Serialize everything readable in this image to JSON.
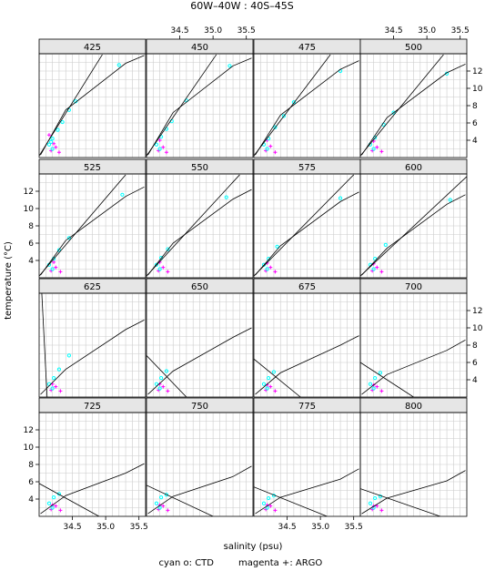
{
  "chart_data": {
    "type": "scatter",
    "title": "60W–40W : 40S–45S",
    "xlabel": "salinity (psu)",
    "ylabel": "temperature (°C)",
    "caption_ctd": "cyan o: CTD",
    "caption_argo": "magenta +: ARGO",
    "xlim": [
      34.0,
      35.6
    ],
    "ylim": [
      2.0,
      14.0
    ],
    "xticks": [
      "34.5",
      "35.0",
      "35.5"
    ],
    "yticks": [
      "4",
      "6",
      "8",
      "10",
      "12"
    ],
    "grid": true,
    "colors": {
      "ctd": "#00ffff",
      "argo": "#ff00ff",
      "strip": "#e6e6e6",
      "grid": "#cccccc"
    },
    "panels": [
      {
        "label": "425",
        "density_curve": [
          [
            34.02,
            2.3
          ],
          [
            34.4,
            7.5
          ],
          [
            35.3,
            12.9
          ],
          [
            35.58,
            13.8
          ]
        ],
        "tangent_line": [
          [
            34.0,
            2.2
          ],
          [
            34.95,
            13.9
          ]
        ],
        "ctd_points": [
          [
            34.15,
            3.5
          ],
          [
            34.2,
            4.2
          ],
          [
            34.28,
            5.2
          ],
          [
            34.35,
            6.1
          ],
          [
            34.45,
            7.5
          ],
          [
            34.55,
            8.5
          ],
          [
            35.2,
            12.7
          ],
          [
            34.2,
            3.0
          ],
          [
            34.18,
            3.8
          ]
        ],
        "argo_points": [
          [
            34.18,
            2.8
          ],
          [
            34.25,
            3.2
          ],
          [
            34.3,
            2.6
          ],
          [
            34.22,
            3.6
          ],
          [
            34.15,
            4.6
          ]
        ]
      },
      {
        "label": "450",
        "density_curve": [
          [
            34.02,
            2.3
          ],
          [
            34.4,
            7.2
          ],
          [
            35.3,
            12.6
          ],
          [
            35.58,
            13.5
          ]
        ],
        "tangent_line": [
          [
            34.0,
            2.2
          ],
          [
            35.05,
            13.9
          ]
        ],
        "ctd_points": [
          [
            34.15,
            3.5
          ],
          [
            34.22,
            4.4
          ],
          [
            34.3,
            5.3
          ],
          [
            34.38,
            6.2
          ],
          [
            34.6,
            8.6
          ],
          [
            35.25,
            12.6
          ],
          [
            34.2,
            3.0
          ]
        ],
        "argo_points": [
          [
            34.18,
            2.8
          ],
          [
            34.25,
            3.2
          ],
          [
            34.3,
            2.6
          ],
          [
            34.2,
            4.0
          ]
        ]
      },
      {
        "label": "475",
        "density_curve": [
          [
            34.02,
            2.3
          ],
          [
            34.4,
            6.9
          ],
          [
            35.3,
            12.2
          ],
          [
            35.58,
            13.2
          ]
        ],
        "tangent_line": [
          [
            34.0,
            2.2
          ],
          [
            35.15,
            13.9
          ]
        ],
        "ctd_points": [
          [
            34.15,
            3.5
          ],
          [
            34.22,
            4.2
          ],
          [
            34.32,
            5.5
          ],
          [
            34.45,
            6.8
          ],
          [
            34.6,
            8.4
          ],
          [
            35.3,
            12.0
          ],
          [
            34.2,
            3.0
          ]
        ],
        "argo_points": [
          [
            34.18,
            2.8
          ],
          [
            34.25,
            3.3
          ],
          [
            34.32,
            2.6
          ],
          [
            34.2,
            4.0
          ]
        ]
      },
      {
        "label": "500",
        "density_curve": [
          [
            34.02,
            2.3
          ],
          [
            34.4,
            6.6
          ],
          [
            35.3,
            11.8
          ],
          [
            35.58,
            12.8
          ]
        ],
        "tangent_line": [
          [
            34.0,
            2.2
          ],
          [
            35.25,
            13.9
          ]
        ],
        "ctd_points": [
          [
            34.15,
            3.5
          ],
          [
            34.22,
            4.3
          ],
          [
            34.35,
            5.8
          ],
          [
            34.5,
            7.2
          ],
          [
            35.3,
            11.7
          ],
          [
            34.2,
            3.0
          ]
        ],
        "argo_points": [
          [
            34.18,
            2.8
          ],
          [
            34.25,
            3.2
          ],
          [
            34.32,
            2.7
          ],
          [
            34.2,
            3.9
          ]
        ]
      },
      {
        "label": "525",
        "density_curve": [
          [
            34.02,
            2.3
          ],
          [
            34.4,
            6.3
          ],
          [
            35.3,
            11.4
          ],
          [
            35.58,
            12.5
          ]
        ],
        "tangent_line": [
          [
            34.0,
            2.2
          ],
          [
            35.3,
            13.9
          ]
        ],
        "ctd_points": [
          [
            34.15,
            3.5
          ],
          [
            34.22,
            4.2
          ],
          [
            34.3,
            5.2
          ],
          [
            34.45,
            6.6
          ],
          [
            35.25,
            11.6
          ],
          [
            34.2,
            3.0
          ]
        ],
        "argo_points": [
          [
            34.18,
            2.8
          ],
          [
            34.25,
            3.2
          ],
          [
            34.32,
            2.7
          ],
          [
            34.22,
            3.8
          ]
        ]
      },
      {
        "label": "550",
        "density_curve": [
          [
            34.02,
            2.3
          ],
          [
            34.4,
            6.0
          ],
          [
            35.3,
            11.1
          ],
          [
            35.58,
            12.2
          ]
        ],
        "tangent_line": [
          [
            34.0,
            2.2
          ],
          [
            35.4,
            13.9
          ]
        ],
        "ctd_points": [
          [
            34.15,
            3.5
          ],
          [
            34.22,
            4.3
          ],
          [
            34.32,
            5.3
          ],
          [
            35.2,
            11.3
          ],
          [
            34.2,
            3.0
          ]
        ],
        "argo_points": [
          [
            34.18,
            2.8
          ],
          [
            34.25,
            3.2
          ],
          [
            34.32,
            2.7
          ],
          [
            34.2,
            3.8
          ]
        ]
      },
      {
        "label": "575",
        "density_curve": [
          [
            34.02,
            2.3
          ],
          [
            34.4,
            5.7
          ],
          [
            35.3,
            10.8
          ],
          [
            35.58,
            11.9
          ]
        ],
        "tangent_line": [
          [
            34.0,
            2.2
          ],
          [
            35.5,
            13.9
          ]
        ],
        "ctd_points": [
          [
            34.15,
            3.5
          ],
          [
            34.22,
            4.2
          ],
          [
            34.35,
            5.6
          ],
          [
            35.3,
            11.2
          ],
          [
            34.2,
            3.0
          ]
        ],
        "argo_points": [
          [
            34.18,
            2.8
          ],
          [
            34.25,
            3.2
          ],
          [
            34.32,
            2.7
          ],
          [
            34.2,
            3.7
          ]
        ]
      },
      {
        "label": "600",
        "density_curve": [
          [
            34.02,
            2.3
          ],
          [
            34.4,
            5.4
          ],
          [
            35.3,
            10.5
          ],
          [
            35.58,
            11.6
          ]
        ],
        "tangent_line": [
          [
            34.0,
            2.2
          ],
          [
            35.6,
            13.7
          ]
        ],
        "ctd_points": [
          [
            34.15,
            3.5
          ],
          [
            34.22,
            4.2
          ],
          [
            34.38,
            5.8
          ],
          [
            35.35,
            11.0
          ],
          [
            34.2,
            3.0
          ]
        ],
        "argo_points": [
          [
            34.18,
            2.8
          ],
          [
            34.25,
            3.2
          ],
          [
            34.32,
            2.7
          ],
          [
            34.2,
            3.6
          ]
        ]
      },
      {
        "label": "625",
        "density_curve": [
          [
            34.02,
            2.3
          ],
          [
            34.4,
            5.2
          ],
          [
            35.3,
            9.8
          ],
          [
            35.58,
            10.9
          ]
        ],
        "tangent_line": [
          [
            34.04,
            14.0
          ],
          [
            34.12,
            2.0
          ]
        ],
        "ctd_points": [
          [
            34.15,
            3.5
          ],
          [
            34.22,
            4.2
          ],
          [
            34.3,
            5.2
          ],
          [
            34.45,
            6.8
          ],
          [
            34.2,
            3.0
          ]
        ],
        "argo_points": [
          [
            34.18,
            2.8
          ],
          [
            34.25,
            3.2
          ],
          [
            34.32,
            2.7
          ],
          [
            34.2,
            3.5
          ]
        ]
      },
      {
        "label": "650",
        "density_curve": [
          [
            34.02,
            2.3
          ],
          [
            34.4,
            5.0
          ],
          [
            35.3,
            8.9
          ],
          [
            35.58,
            10.0
          ]
        ],
        "tangent_line": [
          [
            34.0,
            6.8
          ],
          [
            34.6,
            2.0
          ]
        ],
        "ctd_points": [
          [
            34.15,
            3.5
          ],
          [
            34.22,
            4.2
          ],
          [
            34.3,
            5.0
          ],
          [
            34.2,
            3.0
          ]
        ],
        "argo_points": [
          [
            34.18,
            2.8
          ],
          [
            34.25,
            3.2
          ],
          [
            34.32,
            2.7
          ],
          [
            34.2,
            3.5
          ]
        ]
      },
      {
        "label": "675",
        "density_curve": [
          [
            34.02,
            2.3
          ],
          [
            34.4,
            4.8
          ],
          [
            35.3,
            8.0
          ],
          [
            35.58,
            9.1
          ]
        ],
        "tangent_line": [
          [
            34.0,
            6.4
          ],
          [
            34.7,
            2.0
          ]
        ],
        "ctd_points": [
          [
            34.15,
            3.5
          ],
          [
            34.22,
            4.2
          ],
          [
            34.3,
            4.9
          ],
          [
            34.2,
            3.0
          ]
        ],
        "argo_points": [
          [
            34.18,
            2.8
          ],
          [
            34.25,
            3.2
          ],
          [
            34.32,
            2.7
          ],
          [
            34.2,
            3.4
          ]
        ]
      },
      {
        "label": "700",
        "density_curve": [
          [
            34.02,
            2.3
          ],
          [
            34.4,
            4.6
          ],
          [
            35.3,
            7.4
          ],
          [
            35.58,
            8.6
          ]
        ],
        "tangent_line": [
          [
            34.0,
            6.0
          ],
          [
            34.8,
            2.0
          ]
        ],
        "ctd_points": [
          [
            34.15,
            3.5
          ],
          [
            34.22,
            4.2
          ],
          [
            34.3,
            4.8
          ],
          [
            34.2,
            3.0
          ]
        ],
        "argo_points": [
          [
            34.18,
            2.8
          ],
          [
            34.25,
            3.2
          ],
          [
            34.32,
            2.7
          ],
          [
            34.2,
            3.4
          ]
        ]
      },
      {
        "label": "725",
        "density_curve": [
          [
            34.02,
            2.3
          ],
          [
            34.4,
            4.4
          ],
          [
            35.3,
            7.0
          ],
          [
            35.58,
            8.1
          ]
        ],
        "tangent_line": [
          [
            34.0,
            5.8
          ],
          [
            34.9,
            2.0
          ]
        ],
        "ctd_points": [
          [
            34.15,
            3.5
          ],
          [
            34.22,
            4.2
          ],
          [
            34.3,
            4.6
          ],
          [
            34.2,
            3.0
          ]
        ],
        "argo_points": [
          [
            34.18,
            2.8
          ],
          [
            34.25,
            3.2
          ],
          [
            34.32,
            2.7
          ],
          [
            34.2,
            3.3
          ]
        ]
      },
      {
        "label": "750",
        "density_curve": [
          [
            34.02,
            2.3
          ],
          [
            34.4,
            4.3
          ],
          [
            35.3,
            6.6
          ],
          [
            35.58,
            7.8
          ]
        ],
        "tangent_line": [
          [
            34.0,
            5.6
          ],
          [
            35.0,
            2.0
          ]
        ],
        "ctd_points": [
          [
            34.15,
            3.5
          ],
          [
            34.22,
            4.2
          ],
          [
            34.3,
            4.5
          ],
          [
            34.2,
            3.0
          ]
        ],
        "argo_points": [
          [
            34.18,
            2.8
          ],
          [
            34.25,
            3.2
          ],
          [
            34.32,
            2.7
          ],
          [
            34.2,
            3.3
          ]
        ]
      },
      {
        "label": "775",
        "density_curve": [
          [
            34.02,
            2.3
          ],
          [
            34.4,
            4.2
          ],
          [
            35.3,
            6.3
          ],
          [
            35.58,
            7.5
          ]
        ],
        "tangent_line": [
          [
            34.0,
            5.4
          ],
          [
            35.1,
            2.0
          ]
        ],
        "ctd_points": [
          [
            34.15,
            3.5
          ],
          [
            34.22,
            4.1
          ],
          [
            34.3,
            4.4
          ],
          [
            34.2,
            3.0
          ]
        ],
        "argo_points": [
          [
            34.18,
            2.8
          ],
          [
            34.25,
            3.2
          ],
          [
            34.32,
            2.7
          ],
          [
            34.2,
            3.3
          ]
        ]
      },
      {
        "label": "800",
        "density_curve": [
          [
            34.02,
            2.3
          ],
          [
            34.4,
            4.1
          ],
          [
            35.3,
            6.1
          ],
          [
            35.58,
            7.3
          ]
        ],
        "tangent_line": [
          [
            34.0,
            5.2
          ],
          [
            35.2,
            2.0
          ]
        ],
        "ctd_points": [
          [
            34.15,
            3.5
          ],
          [
            34.22,
            4.1
          ],
          [
            34.3,
            4.3
          ],
          [
            34.2,
            3.0
          ]
        ],
        "argo_points": [
          [
            34.18,
            2.8
          ],
          [
            34.25,
            3.2
          ],
          [
            34.32,
            2.7
          ],
          [
            34.2,
            3.2
          ]
        ]
      }
    ]
  }
}
